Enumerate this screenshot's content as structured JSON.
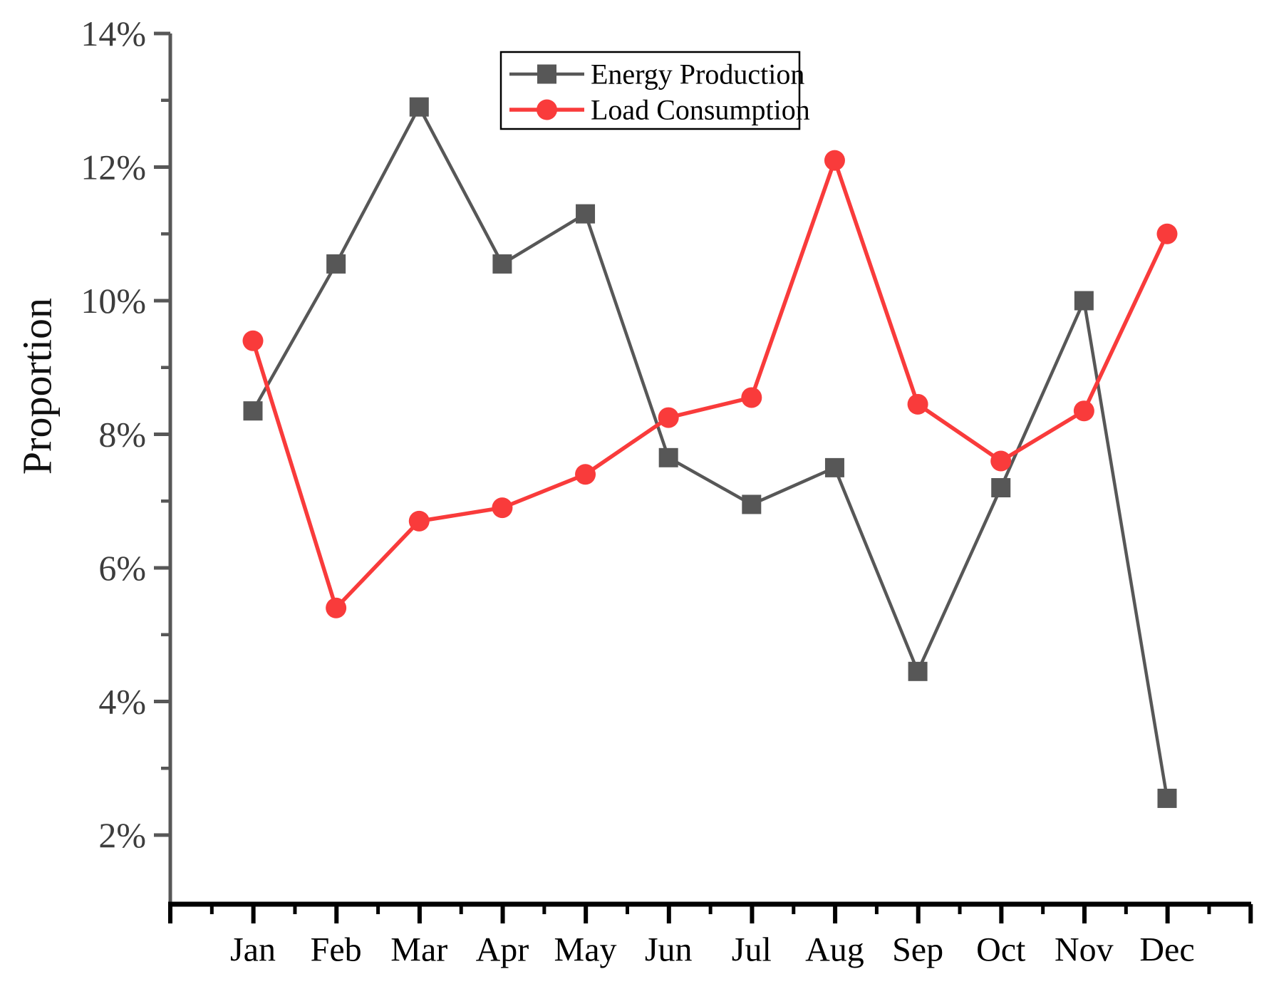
{
  "figure": {
    "background": "#ffffff"
  },
  "chart_data": {
    "type": "line",
    "title": "",
    "xlabel": "",
    "ylabel": "Proportion",
    "grid": false,
    "legend_position": "top-center-inside",
    "legend_border": true,
    "categories": [
      "Jan",
      "Feb",
      "Mar",
      "Apr",
      "May",
      "Jun",
      "Jul",
      "Aug",
      "Sep",
      "Oct",
      "Nov",
      "Dec"
    ],
    "y_axis": {
      "min": 1,
      "max": 14,
      "unit": "%",
      "major_tick_values": [
        2,
        4,
        6,
        8,
        10,
        12,
        14
      ],
      "major_tick_labels": [
        "2%",
        "4%",
        "6%",
        "8%",
        "10%",
        "12%",
        "14%"
      ],
      "minor_tick_values": [
        3,
        5,
        7,
        9,
        11,
        13
      ]
    },
    "series": [
      {
        "name": "Energy Production",
        "marker": "square",
        "color": "#575757",
        "values": [
          8.35,
          10.55,
          12.9,
          10.55,
          11.3,
          7.65,
          6.95,
          7.5,
          4.45,
          7.2,
          10.0,
          2.55
        ]
      },
      {
        "name": "Load Consumption",
        "marker": "circle",
        "color": "#f93b3b",
        "values": [
          9.4,
          5.4,
          6.7,
          6.9,
          7.4,
          8.25,
          8.55,
          12.1,
          8.45,
          7.6,
          8.35,
          11.0
        ]
      }
    ],
    "colors": {
      "y_axis_line": "#575757",
      "x_axis_line": "#000000",
      "y_tick_label": "#3d3d3d",
      "x_tick_label": "#000000",
      "axis_title": "#111111",
      "legend_border": "#000000",
      "legend_text": "#000000"
    }
  }
}
